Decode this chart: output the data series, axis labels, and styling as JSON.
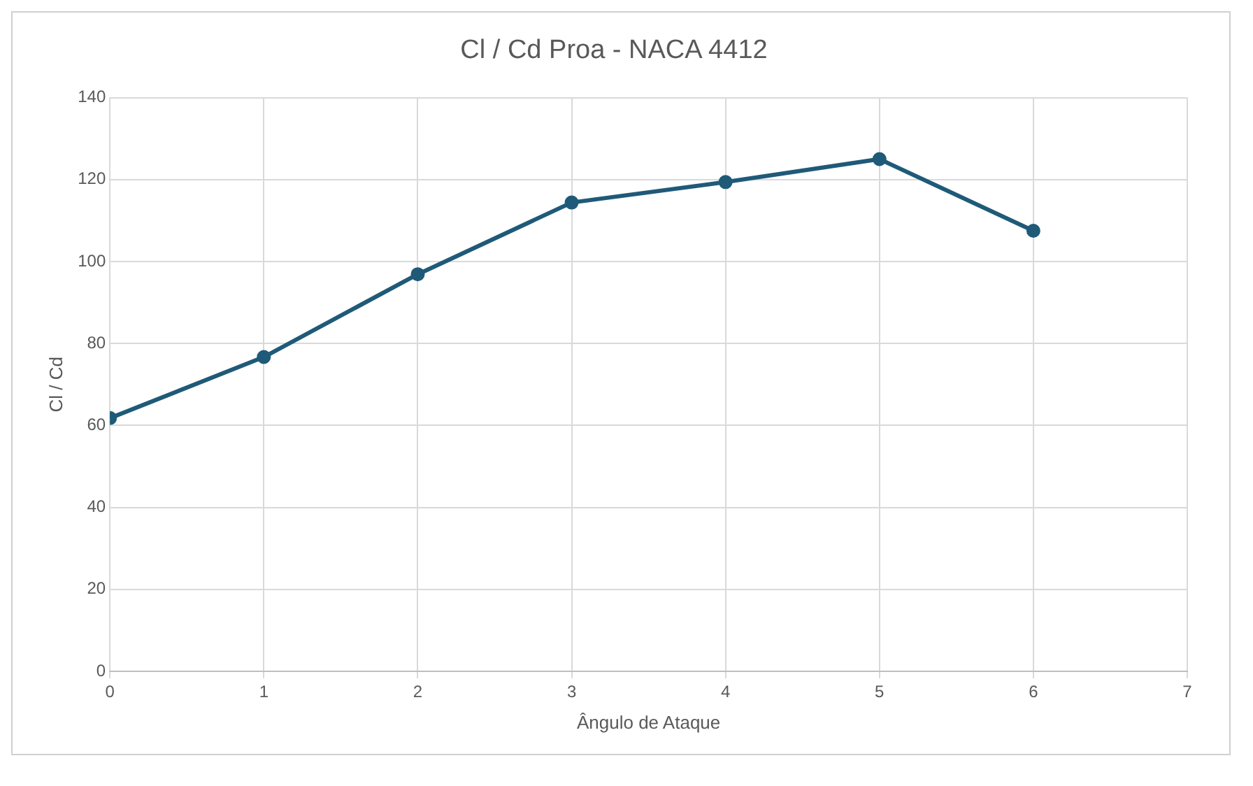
{
  "chart_data": {
    "type": "line",
    "title": "Cl / Cd Proa - NACA 4412",
    "xlabel": "Ângulo de Ataque",
    "ylabel": "Cl / Cd",
    "x": [
      0,
      1,
      2,
      3,
      4,
      5,
      6
    ],
    "series": [
      {
        "color": "#1f5a78",
        "values": [
          61.8,
          76.7,
          96.9,
          114.4,
          119.4,
          125.0,
          107.5
        ]
      }
    ],
    "xlim": [
      0,
      7
    ],
    "xticks": [
      0,
      1,
      2,
      3,
      4,
      5,
      6,
      7
    ],
    "ylim": [
      0,
      140
    ],
    "yticks": [
      0,
      20,
      40,
      60,
      80,
      100,
      120,
      140
    ],
    "grid": true,
    "legend": false,
    "marker": "circle",
    "line_style": "solid"
  }
}
